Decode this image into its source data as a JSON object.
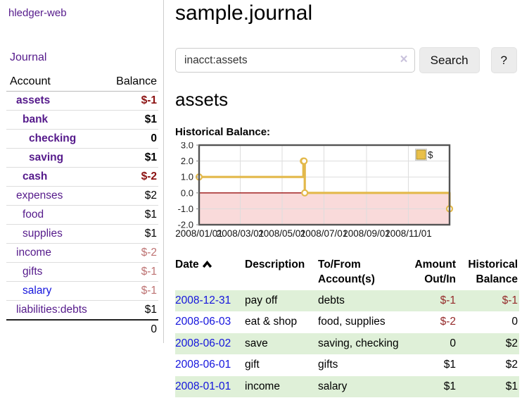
{
  "app": {
    "title": "hledger-web"
  },
  "sidebar": {
    "nav_journal": "Journal",
    "table": {
      "headers": {
        "account": "Account",
        "balance": "Balance"
      },
      "accounts": [
        {
          "name": "assets",
          "depth": 1,
          "bold": true,
          "link_color": "purple",
          "balance": "$-1",
          "balance_class": "neg-strong"
        },
        {
          "name": "bank",
          "depth": 2,
          "bold": true,
          "link_color": "purple",
          "balance": "$1",
          "balance_class": "plain"
        },
        {
          "name": "checking",
          "depth": 3,
          "bold": true,
          "link_color": "purple",
          "balance": "0",
          "balance_class": "plain"
        },
        {
          "name": "saving",
          "depth": 3,
          "bold": true,
          "link_color": "purple",
          "balance": "$1",
          "balance_class": "plain"
        },
        {
          "name": "cash",
          "depth": 2,
          "bold": true,
          "link_color": "purple",
          "balance": "$-2",
          "balance_class": "neg-strong"
        },
        {
          "name": "expenses",
          "depth": 1,
          "bold": false,
          "link_color": "purple",
          "balance": "$2",
          "balance_class": "plain"
        },
        {
          "name": "food",
          "depth": 2,
          "bold": false,
          "link_color": "purple",
          "balance": "$1",
          "balance_class": "plain"
        },
        {
          "name": "supplies",
          "depth": 2,
          "bold": false,
          "link_color": "purple",
          "balance": "$1",
          "balance_class": "plain"
        },
        {
          "name": "income",
          "depth": 1,
          "bold": false,
          "link_color": "purple",
          "balance": "$-2",
          "balance_class": "neg-light"
        },
        {
          "name": "gifts",
          "depth": 2,
          "bold": false,
          "link_color": "purple",
          "balance": "$-1",
          "balance_class": "neg-light"
        },
        {
          "name": "salary",
          "depth": 2,
          "bold": false,
          "link_color": "blue",
          "balance": "$-1",
          "balance_class": "neg-light"
        },
        {
          "name": "liabilities:debts",
          "depth": 1,
          "bold": false,
          "link_color": "purple",
          "balance": "$1",
          "balance_class": "plain"
        }
      ],
      "total": "0"
    }
  },
  "main": {
    "title": "sample.journal",
    "search": {
      "value": "inacct:assets",
      "clear_icon": "×",
      "button_label": "Search",
      "help_label": "?"
    },
    "account_heading": "assets",
    "chart_label": "Historical Balance:"
  },
  "chart_data": {
    "type": "line",
    "step": true,
    "title": "Historical Balance",
    "series": [
      {
        "name": "$",
        "color": "#e3b94b",
        "points": [
          [
            "2008-01-01",
            1
          ],
          [
            "2008-06-01",
            2
          ],
          [
            "2008-06-02",
            2
          ],
          [
            "2008-06-03",
            0
          ],
          [
            "2008-12-31",
            -1
          ]
        ]
      }
    ],
    "x_range": [
      "2008-01-01",
      "2008-12-31"
    ],
    "x_tick_labels": [
      "2008/01/01",
      "2008/03/01",
      "2008/05/01",
      "2008/07/01",
      "2008/09/01",
      "2008/11/01"
    ],
    "x_tick_dates": [
      "2008-01-01",
      "2008-03-01",
      "2008-05-01",
      "2008-07-01",
      "2008-09-01",
      "2008-11-01"
    ],
    "y_ticks": [
      3.0,
      2.0,
      1.0,
      0.0,
      -1.0,
      -2.0
    ],
    "ylim": [
      -2,
      3
    ],
    "grid": true,
    "negative_region_color": "#f9dada",
    "zero_line_color": "#991111",
    "grid_color": "#ddd",
    "border_color": "#545454",
    "legend": {
      "label": "$",
      "position": "top-right",
      "swatch_color": "#e9c04a",
      "swatch_border": "#a5882a"
    }
  },
  "transactions": {
    "headers": {
      "date": "Date",
      "description": "Description",
      "accounts": "To/From Account(s)",
      "amount": "Amount Out/In",
      "balance": "Historical Balance"
    },
    "sort": {
      "column": "date",
      "direction": "asc"
    },
    "rows": [
      {
        "date": "2008-12-31",
        "description": "pay off",
        "accounts": "debts",
        "amount": "$-1",
        "amount_neg": true,
        "balance": "$-1",
        "balance_neg": true
      },
      {
        "date": "2008-06-03",
        "description": "eat & shop",
        "accounts": "food, supplies",
        "amount": "$-2",
        "amount_neg": true,
        "balance": "0",
        "balance_neg": false
      },
      {
        "date": "2008-06-02",
        "description": "save",
        "accounts": "saving, checking",
        "amount": "0",
        "amount_neg": false,
        "balance": "$2",
        "balance_neg": false
      },
      {
        "date": "2008-06-01",
        "description": "gift",
        "accounts": "gifts",
        "amount": "$1",
        "amount_neg": false,
        "balance": "$2",
        "balance_neg": false
      },
      {
        "date": "2008-01-01",
        "description": "income",
        "accounts": "salary",
        "amount": "$1",
        "amount_neg": false,
        "balance": "$1",
        "balance_neg": false
      }
    ]
  }
}
